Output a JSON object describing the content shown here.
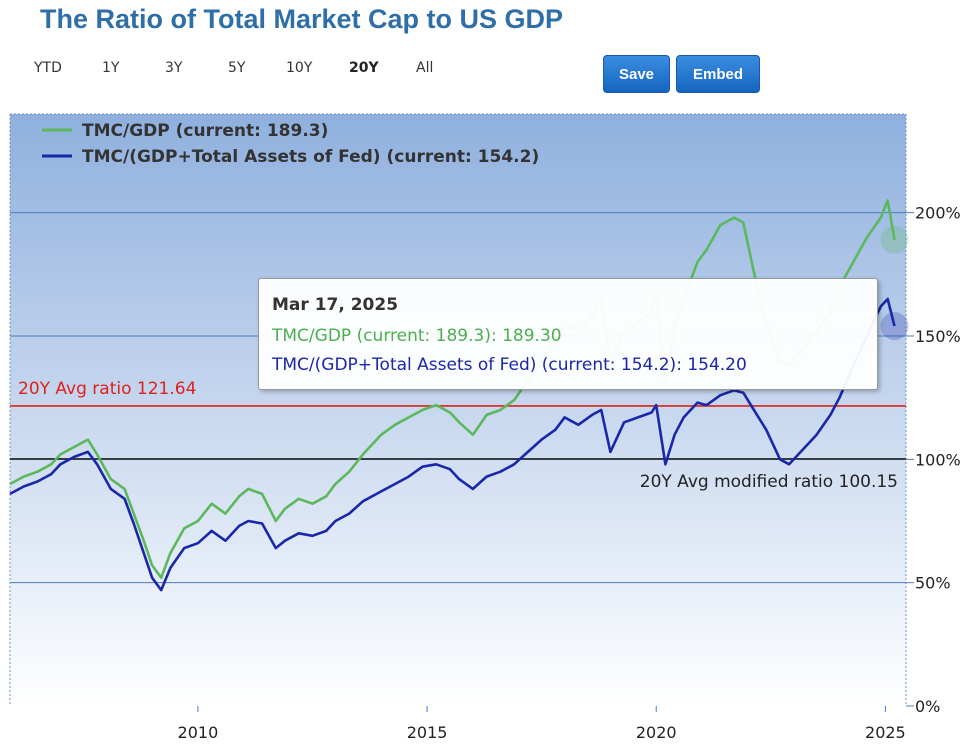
{
  "title": "The Ratio of Total Market Cap to US GDP",
  "range_buttons": [
    "YTD",
    "1Y",
    "3Y",
    "5Y",
    "10Y",
    "20Y",
    "All"
  ],
  "active_range": "20Y",
  "buttons": {
    "save": "Save",
    "embed": "Embed"
  },
  "colors": {
    "tmc_gdp": "#5cb85c",
    "tmc_fed": "#1a27a8",
    "avg_line": "#e0201c",
    "title": "#2f6fa8",
    "button": "#1e73d2"
  },
  "tooltip": {
    "date": "Mar 17, 2025",
    "line1": "TMC/GDP (current: 189.3): 189.30",
    "line2": "TMC/(GDP+Total Assets of Fed) (current: 154.2): 154.20"
  },
  "chart_data": {
    "type": "line",
    "ylim": [
      0,
      240
    ],
    "xlim": [
      2005.9,
      2025.45
    ],
    "yticks": [
      0,
      50,
      100,
      150,
      200
    ],
    "ytick_labels": [
      "0%",
      "50%",
      "100%",
      "150%",
      "200%"
    ],
    "xticks": [
      2010,
      2015,
      2020,
      2025
    ],
    "xtick_labels": [
      "2010",
      "2015",
      "2020",
      "2025"
    ],
    "grid": true,
    "legend_position": "top-left",
    "reference_lines": [
      {
        "value": 121.64,
        "label": "20Y Avg ratio 121.64",
        "color": "#e0201c"
      },
      {
        "value": 100.15,
        "label": "20Y Avg modified ratio 100.15",
        "color": "#222222"
      }
    ],
    "series": [
      {
        "name": "TMC/GDP (current: 189.3)",
        "color": "#5cb85c",
        "x": [
          2005.9,
          2006.2,
          2006.5,
          2006.8,
          2007.0,
          2007.3,
          2007.6,
          2007.8,
          2008.1,
          2008.4,
          2008.6,
          2008.8,
          2009.0,
          2009.2,
          2009.4,
          2009.7,
          2010.0,
          2010.3,
          2010.6,
          2010.9,
          2011.1,
          2011.4,
          2011.7,
          2011.9,
          2012.2,
          2012.5,
          2012.8,
          2013.0,
          2013.3,
          2013.6,
          2014.0,
          2014.3,
          2014.6,
          2014.9,
          2015.2,
          2015.5,
          2015.7,
          2016.0,
          2016.3,
          2016.6,
          2016.9,
          2017.2,
          2017.5,
          2017.8,
          2018.0,
          2018.3,
          2018.6,
          2018.8,
          2019.0,
          2019.3,
          2019.6,
          2019.9,
          2020.0,
          2020.2,
          2020.4,
          2020.6,
          2020.9,
          2021.1,
          2021.4,
          2021.7,
          2021.9,
          2022.2,
          2022.4,
          2022.7,
          2022.9,
          2023.2,
          2023.5,
          2023.8,
          2024.0,
          2024.3,
          2024.6,
          2024.9,
          2025.05,
          2025.2
        ],
        "values": [
          90,
          93,
          95,
          98,
          102,
          105,
          108,
          102,
          92,
          88,
          78,
          68,
          57,
          52,
          62,
          72,
          75,
          82,
          78,
          85,
          88,
          86,
          75,
          80,
          84,
          82,
          85,
          90,
          95,
          102,
          110,
          114,
          117,
          120,
          122,
          119,
          115,
          110,
          118,
          120,
          124,
          132,
          140,
          148,
          155,
          152,
          158,
          165,
          140,
          152,
          155,
          160,
          168,
          130,
          155,
          165,
          180,
          185,
          195,
          198,
          196,
          170,
          155,
          140,
          138,
          145,
          152,
          160,
          170,
          180,
          190,
          198,
          205,
          189
        ]
      },
      {
        "name": "TMC/(GDP+Total Assets of Fed) (current: 154.2)",
        "color": "#1a27a8",
        "x": [
          2005.9,
          2006.2,
          2006.5,
          2006.8,
          2007.0,
          2007.3,
          2007.6,
          2007.8,
          2008.1,
          2008.4,
          2008.6,
          2008.8,
          2009.0,
          2009.2,
          2009.4,
          2009.7,
          2010.0,
          2010.3,
          2010.6,
          2010.9,
          2011.1,
          2011.4,
          2011.7,
          2011.9,
          2012.2,
          2012.5,
          2012.8,
          2013.0,
          2013.3,
          2013.6,
          2014.0,
          2014.3,
          2014.6,
          2014.9,
          2015.2,
          2015.5,
          2015.7,
          2016.0,
          2016.3,
          2016.6,
          2016.9,
          2017.2,
          2017.5,
          2017.8,
          2018.0,
          2018.3,
          2018.6,
          2018.8,
          2019.0,
          2019.3,
          2019.6,
          2019.9,
          2020.0,
          2020.2,
          2020.4,
          2020.6,
          2020.9,
          2021.1,
          2021.4,
          2021.7,
          2021.9,
          2022.2,
          2022.4,
          2022.7,
          2022.9,
          2023.2,
          2023.5,
          2023.8,
          2024.0,
          2024.3,
          2024.6,
          2024.9,
          2025.05,
          2025.2
        ],
        "values": [
          86,
          89,
          91,
          94,
          98,
          101,
          103,
          98,
          88,
          84,
          74,
          63,
          52,
          47,
          56,
          64,
          66,
          71,
          67,
          73,
          75,
          74,
          64,
          67,
          70,
          69,
          71,
          75,
          78,
          83,
          87,
          90,
          93,
          97,
          98,
          96,
          92,
          88,
          93,
          95,
          98,
          103,
          108,
          112,
          117,
          114,
          118,
          120,
          103,
          115,
          117,
          119,
          122,
          98,
          110,
          117,
          123,
          122,
          126,
          128,
          127,
          118,
          112,
          100,
          98,
          104,
          110,
          118,
          125,
          138,
          150,
          162,
          165,
          154
        ]
      }
    ]
  }
}
